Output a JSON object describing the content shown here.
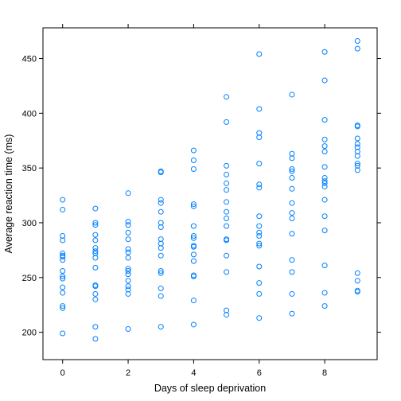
{
  "chart_data": {
    "type": "scatter",
    "title": "",
    "xlabel": "Days of sleep deprivation",
    "ylabel": "Average reaction time (ms)",
    "xlim": [
      -0.6,
      9.6
    ],
    "ylim": [
      175,
      478
    ],
    "x_ticks": [
      0,
      2,
      4,
      6,
      8
    ],
    "x_tick_labels": [
      "0",
      "2",
      "4",
      "6",
      "8"
    ],
    "y_ticks": [
      200,
      250,
      300,
      350,
      400,
      450
    ],
    "y_tick_labels": [
      "200",
      "250",
      "300",
      "350",
      "400",
      "450"
    ],
    "grid": false,
    "legend": "none",
    "marker_color": "#0080ff",
    "points": [
      {
        "x": 0,
        "y": 199
      },
      {
        "x": 0,
        "y": 222
      },
      {
        "x": 0,
        "y": 224
      },
      {
        "x": 0,
        "y": 236
      },
      {
        "x": 0,
        "y": 241
      },
      {
        "x": 0,
        "y": 249
      },
      {
        "x": 0,
        "y": 251
      },
      {
        "x": 0,
        "y": 256
      },
      {
        "x": 0,
        "y": 266
      },
      {
        "x": 0,
        "y": 269
      },
      {
        "x": 0,
        "y": 270
      },
      {
        "x": 0,
        "y": 272
      },
      {
        "x": 0,
        "y": 284
      },
      {
        "x": 0,
        "y": 288
      },
      {
        "x": 0,
        "y": 312
      },
      {
        "x": 0,
        "y": 321
      },
      {
        "x": 1,
        "y": 194
      },
      {
        "x": 1,
        "y": 205
      },
      {
        "x": 1,
        "y": 230
      },
      {
        "x": 1,
        "y": 235
      },
      {
        "x": 1,
        "y": 242
      },
      {
        "x": 1,
        "y": 243
      },
      {
        "x": 1,
        "y": 259
      },
      {
        "x": 1,
        "y": 268
      },
      {
        "x": 1,
        "y": 272
      },
      {
        "x": 1,
        "y": 274
      },
      {
        "x": 1,
        "y": 277
      },
      {
        "x": 1,
        "y": 284
      },
      {
        "x": 1,
        "y": 289
      },
      {
        "x": 1,
        "y": 298
      },
      {
        "x": 1,
        "y": 300
      },
      {
        "x": 1,
        "y": 313
      },
      {
        "x": 2,
        "y": 203
      },
      {
        "x": 2,
        "y": 235
      },
      {
        "x": 2,
        "y": 239
      },
      {
        "x": 2,
        "y": 242
      },
      {
        "x": 2,
        "y": 247
      },
      {
        "x": 2,
        "y": 253
      },
      {
        "x": 2,
        "y": 256
      },
      {
        "x": 2,
        "y": 258
      },
      {
        "x": 2,
        "y": 268
      },
      {
        "x": 2,
        "y": 273
      },
      {
        "x": 2,
        "y": 276
      },
      {
        "x": 2,
        "y": 285
      },
      {
        "x": 2,
        "y": 291
      },
      {
        "x": 2,
        "y": 298
      },
      {
        "x": 2,
        "y": 301
      },
      {
        "x": 2,
        "y": 327
      },
      {
        "x": 3,
        "y": 205
      },
      {
        "x": 3,
        "y": 233
      },
      {
        "x": 3,
        "y": 240
      },
      {
        "x": 3,
        "y": 254
      },
      {
        "x": 3,
        "y": 256
      },
      {
        "x": 3,
        "y": 270
      },
      {
        "x": 3,
        "y": 277
      },
      {
        "x": 3,
        "y": 281
      },
      {
        "x": 3,
        "y": 285
      },
      {
        "x": 3,
        "y": 296
      },
      {
        "x": 3,
        "y": 300
      },
      {
        "x": 3,
        "y": 310
      },
      {
        "x": 3,
        "y": 318
      },
      {
        "x": 3,
        "y": 321
      },
      {
        "x": 3,
        "y": 346
      },
      {
        "x": 3,
        "y": 347
      },
      {
        "x": 4,
        "y": 207
      },
      {
        "x": 4,
        "y": 229
      },
      {
        "x": 4,
        "y": 251
      },
      {
        "x": 4,
        "y": 252
      },
      {
        "x": 4,
        "y": 265
      },
      {
        "x": 4,
        "y": 271
      },
      {
        "x": 4,
        "y": 278
      },
      {
        "x": 4,
        "y": 279
      },
      {
        "x": 4,
        "y": 286
      },
      {
        "x": 4,
        "y": 288
      },
      {
        "x": 4,
        "y": 297
      },
      {
        "x": 4,
        "y": 315
      },
      {
        "x": 4,
        "y": 317
      },
      {
        "x": 4,
        "y": 349
      },
      {
        "x": 4,
        "y": 357
      },
      {
        "x": 4,
        "y": 366
      },
      {
        "x": 5,
        "y": 216
      },
      {
        "x": 5,
        "y": 220
      },
      {
        "x": 5,
        "y": 255
      },
      {
        "x": 5,
        "y": 270
      },
      {
        "x": 5,
        "y": 284
      },
      {
        "x": 5,
        "y": 285
      },
      {
        "x": 5,
        "y": 297
      },
      {
        "x": 5,
        "y": 304
      },
      {
        "x": 5,
        "y": 310
      },
      {
        "x": 5,
        "y": 319
      },
      {
        "x": 5,
        "y": 330
      },
      {
        "x": 5,
        "y": 336
      },
      {
        "x": 5,
        "y": 344
      },
      {
        "x": 5,
        "y": 352
      },
      {
        "x": 5,
        "y": 392
      },
      {
        "x": 5,
        "y": 415
      },
      {
        "x": 6,
        "y": 213
      },
      {
        "x": 6,
        "y": 235
      },
      {
        "x": 6,
        "y": 245
      },
      {
        "x": 6,
        "y": 260
      },
      {
        "x": 6,
        "y": 279
      },
      {
        "x": 6,
        "y": 281
      },
      {
        "x": 6,
        "y": 288
      },
      {
        "x": 6,
        "y": 291
      },
      {
        "x": 6,
        "y": 297
      },
      {
        "x": 6,
        "y": 306
      },
      {
        "x": 6,
        "y": 332
      },
      {
        "x": 6,
        "y": 335
      },
      {
        "x": 6,
        "y": 354
      },
      {
        "x": 6,
        "y": 378
      },
      {
        "x": 6,
        "y": 382
      },
      {
        "x": 6,
        "y": 404
      },
      {
        "x": 6,
        "y": 454
      },
      {
        "x": 7,
        "y": 217
      },
      {
        "x": 7,
        "y": 235
      },
      {
        "x": 7,
        "y": 255
      },
      {
        "x": 7,
        "y": 266
      },
      {
        "x": 7,
        "y": 290
      },
      {
        "x": 7,
        "y": 304
      },
      {
        "x": 7,
        "y": 309
      },
      {
        "x": 7,
        "y": 318
      },
      {
        "x": 7,
        "y": 331
      },
      {
        "x": 7,
        "y": 341
      },
      {
        "x": 7,
        "y": 347
      },
      {
        "x": 7,
        "y": 349
      },
      {
        "x": 7,
        "y": 359
      },
      {
        "x": 7,
        "y": 363
      },
      {
        "x": 7,
        "y": 417
      },
      {
        "x": 8,
        "y": 224
      },
      {
        "x": 8,
        "y": 236
      },
      {
        "x": 8,
        "y": 261
      },
      {
        "x": 8,
        "y": 293
      },
      {
        "x": 8,
        "y": 306
      },
      {
        "x": 8,
        "y": 321
      },
      {
        "x": 8,
        "y": 333
      },
      {
        "x": 8,
        "y": 336
      },
      {
        "x": 8,
        "y": 338
      },
      {
        "x": 8,
        "y": 341
      },
      {
        "x": 8,
        "y": 351
      },
      {
        "x": 8,
        "y": 365
      },
      {
        "x": 8,
        "y": 370
      },
      {
        "x": 8,
        "y": 376
      },
      {
        "x": 8,
        "y": 394
      },
      {
        "x": 8,
        "y": 430
      },
      {
        "x": 8,
        "y": 456
      },
      {
        "x": 9,
        "y": 237
      },
      {
        "x": 9,
        "y": 238
      },
      {
        "x": 9,
        "y": 247
      },
      {
        "x": 9,
        "y": 254
      },
      {
        "x": 9,
        "y": 348
      },
      {
        "x": 9,
        "y": 352
      },
      {
        "x": 9,
        "y": 354
      },
      {
        "x": 9,
        "y": 361
      },
      {
        "x": 9,
        "y": 365
      },
      {
        "x": 9,
        "y": 369
      },
      {
        "x": 9,
        "y": 372
      },
      {
        "x": 9,
        "y": 377
      },
      {
        "x": 9,
        "y": 388
      },
      {
        "x": 9,
        "y": 389
      },
      {
        "x": 9,
        "y": 459
      },
      {
        "x": 9,
        "y": 466
      }
    ]
  }
}
